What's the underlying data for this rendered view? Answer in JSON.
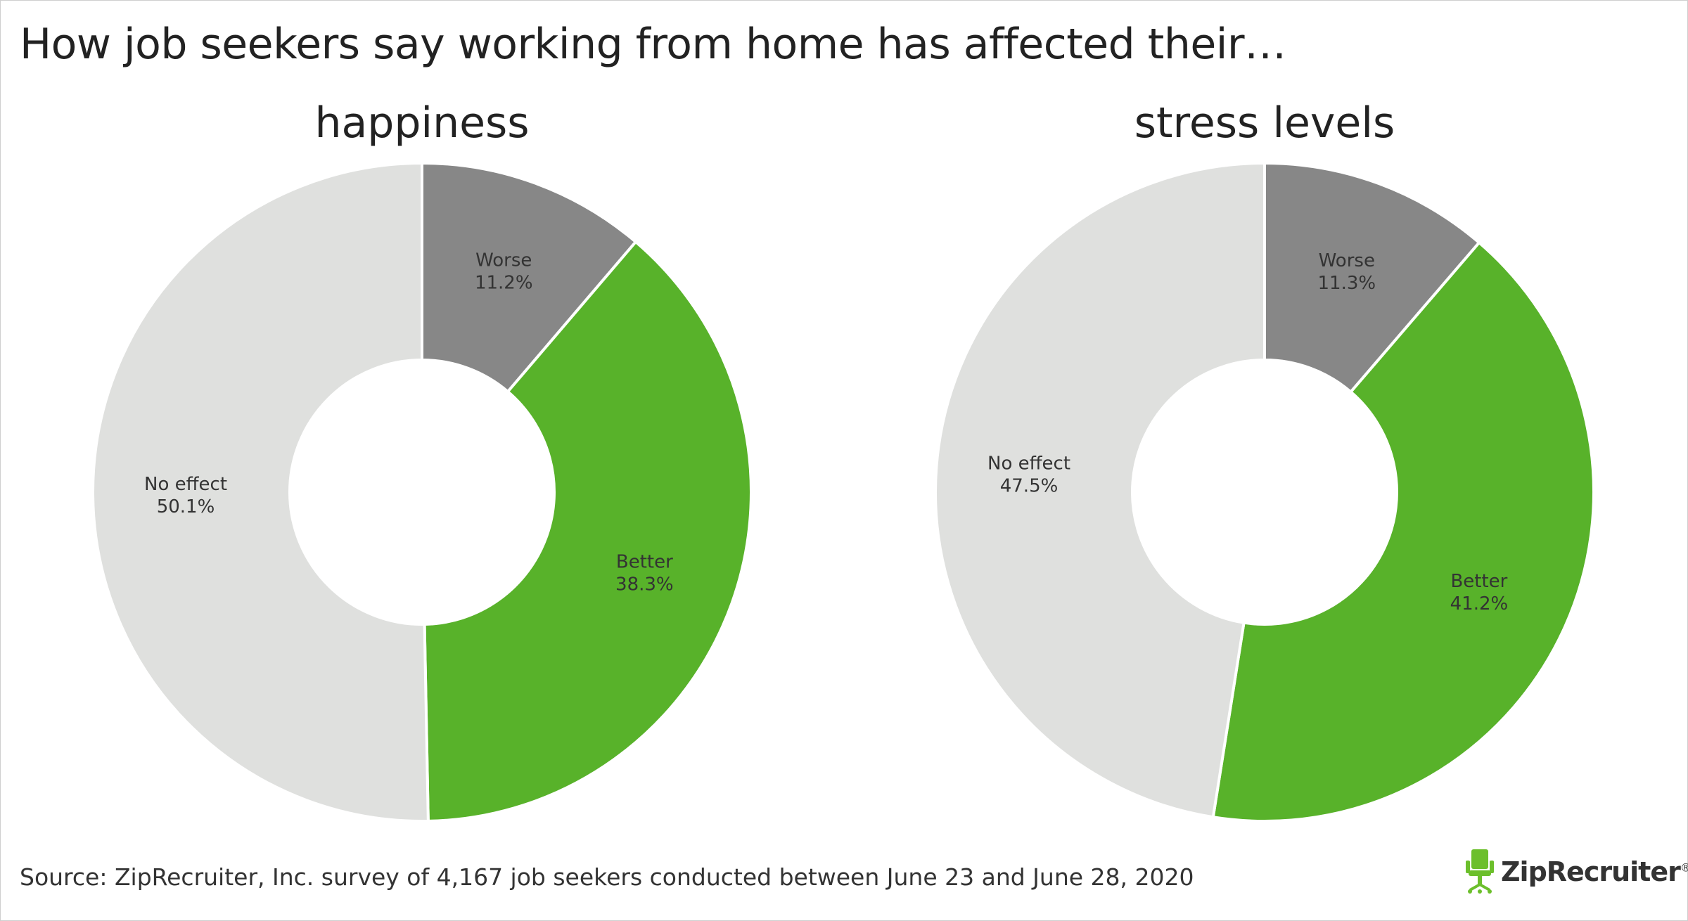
{
  "title": "How job seekers say working from home has affected their…",
  "source": "Source: ZipRecruiter, Inc. survey of 4,167 job seekers conducted between June 23 and June 28, 2020",
  "brand": {
    "name": "ZipRecruiter",
    "mark": "®",
    "icon": "ziprecruiter-chair-icon",
    "color": "#6cbf2c"
  },
  "colors": {
    "Worse": "#878787",
    "Better": "#58b22a",
    "No effect": "#dfe0de"
  },
  "chart_data": [
    {
      "type": "pie",
      "title": "happiness",
      "categories": [
        "Worse",
        "Better",
        "No effect"
      ],
      "values": [
        11.2,
        38.3,
        50.1
      ],
      "value_labels": [
        "11.2%",
        "38.3%",
        "50.1%"
      ]
    },
    {
      "type": "pie",
      "title": "stress levels",
      "categories": [
        "Worse",
        "Better",
        "No effect"
      ],
      "values": [
        11.3,
        41.2,
        47.5
      ],
      "value_labels": [
        "11.3%",
        "41.2%",
        "47.5%"
      ]
    }
  ]
}
